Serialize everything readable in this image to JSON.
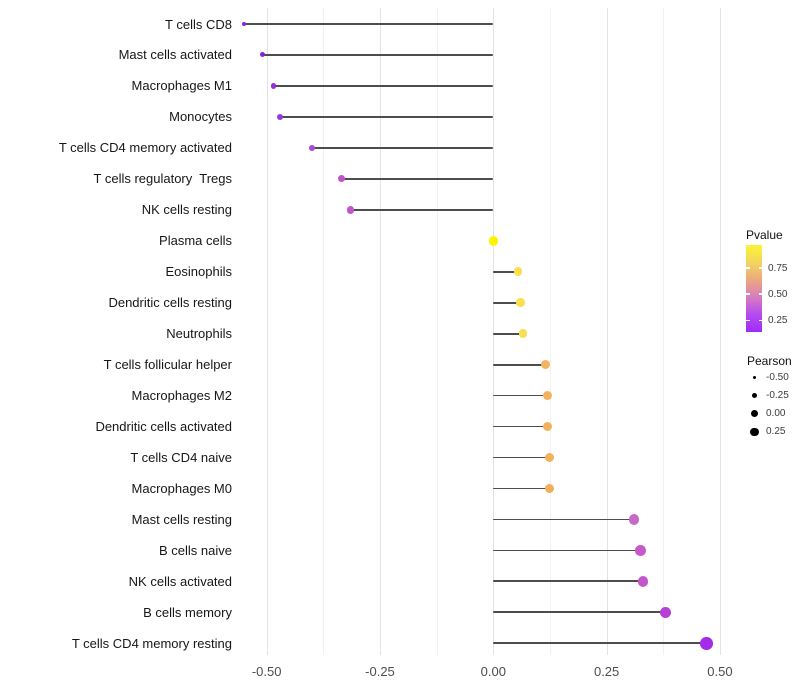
{
  "chart_data": {
    "type": "scatter",
    "variant": "lollipop",
    "orientation": "horizontal",
    "title": "",
    "xlabel": "",
    "ylabel": "",
    "xlim": [
      -0.6,
      0.525
    ],
    "x_major_ticks": [
      -0.5,
      -0.25,
      0.0,
      0.25,
      0.5
    ],
    "x_tick_labels": [
      "-0.50",
      "-0.25",
      "0.00",
      "0.25",
      "0.50"
    ],
    "x_minor_ticks": [
      -0.375,
      -0.125,
      0.125,
      0.375
    ],
    "grid": "major+minor vertical, no axis lines, white background",
    "baseline_x": 0.0,
    "points": [
      {
        "label": "T cells CD8",
        "pearson": -0.55,
        "color": "#8426DE",
        "diameter": 4
      },
      {
        "label": "Mast cells activated",
        "pearson": -0.51,
        "color": "#8A22D2",
        "diameter": 5
      },
      {
        "label": "Macrophages M1",
        "pearson": -0.485,
        "color": "#9130D8",
        "diameter": 5.5
      },
      {
        "label": "Monocytes",
        "pearson": -0.47,
        "color": "#9838DC",
        "diameter": 6
      },
      {
        "label": "T cells CD4 memory activated",
        "pearson": -0.4,
        "color": "#AE49CF",
        "diameter": 6.5
      },
      {
        "label": "T cells regulatory  Tregs",
        "pearson": -0.335,
        "color": "#BC55C6",
        "diameter": 7
      },
      {
        "label": "NK cells resting",
        "pearson": -0.315,
        "color": "#C058C8",
        "diameter": 7.5
      },
      {
        "label": "Plasma cells",
        "pearson": 0.0,
        "color": "#FCF402",
        "diameter": 9.5
      },
      {
        "label": "Eosinophils",
        "pearson": 0.055,
        "color": "#F9E04E",
        "diameter": 8.5
      },
      {
        "label": "Dendritic cells resting",
        "pearson": 0.06,
        "color": "#F9E04E",
        "diameter": 8.5
      },
      {
        "label": "Neutrophils",
        "pearson": 0.065,
        "color": "#F8DE50",
        "diameter": 8.5
      },
      {
        "label": "T cells follicular helper",
        "pearson": 0.115,
        "color": "#F2B55E",
        "diameter": 9
      },
      {
        "label": "Macrophages M2",
        "pearson": 0.12,
        "color": "#F2B35C",
        "diameter": 9
      },
      {
        "label": "Dendritic cells activated",
        "pearson": 0.12,
        "color": "#F1B25B",
        "diameter": 9
      },
      {
        "label": "T cells CD4 naive",
        "pearson": 0.125,
        "color": "#F1B25B",
        "diameter": 9
      },
      {
        "label": "Macrophages M0",
        "pearson": 0.125,
        "color": "#F0B05A",
        "diameter": 9
      },
      {
        "label": "Mast cells resting",
        "pearson": 0.31,
        "color": "#C76AC6",
        "diameter": 10.5
      },
      {
        "label": "B cells naive",
        "pearson": 0.325,
        "color": "#C65ACA",
        "diameter": 10.5
      },
      {
        "label": "NK cells activated",
        "pearson": 0.33,
        "color": "#C456CC",
        "diameter": 10.5
      },
      {
        "label": "B cells memory",
        "pearson": 0.38,
        "color": "#B540D6",
        "diameter": 11
      },
      {
        "label": "T cells CD4 memory resting",
        "pearson": 0.47,
        "color": "#A42BE8",
        "diameter": 12.5
      }
    ]
  },
  "legend": {
    "pvalue": {
      "title": "Pvalue",
      "tick_labels": [
        "0.75",
        "0.50",
        "0.25"
      ],
      "gradient_top_to_bottom": [
        "#FBF432",
        "#F4D55F",
        "#EBA87E",
        "#D77CC0",
        "#B44BF0",
        "#A02CF8"
      ]
    },
    "pearson": {
      "title": "Pearson",
      "items": [
        {
          "label": "-0.50",
          "diameter": 3.5
        },
        {
          "label": "-0.25",
          "diameter": 5.5
        },
        {
          "label": "0.00",
          "diameter": 7
        },
        {
          "label": "0.25",
          "diameter": 8.5
        }
      ]
    }
  }
}
